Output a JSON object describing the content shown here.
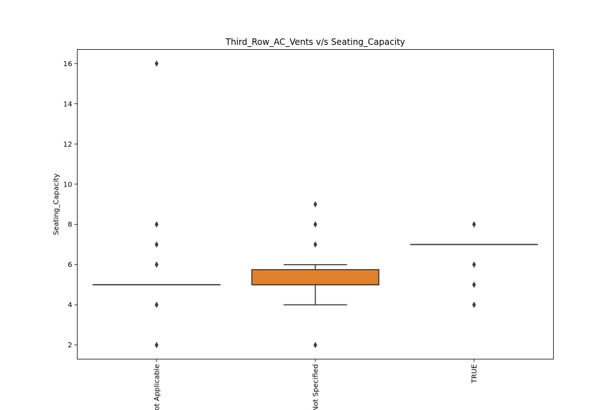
{
  "chart_data": {
    "type": "box",
    "title": "Third_Row_AC_Vents v/s Seating_Capacity",
    "xlabel": "",
    "ylabel": "Seating_Capacity",
    "categories": [
      "Not Applicable",
      "Not Specified",
      "TRUE"
    ],
    "yticks": [
      "2",
      "4",
      "6",
      "8",
      "10",
      "12",
      "14",
      "16"
    ],
    "ylim": [
      1.3,
      16.7
    ],
    "grid": false,
    "boxes": [
      {
        "category": "Not Applicable",
        "q1": 5,
        "median": 5,
        "q3": 5,
        "whisker_low": 5,
        "whisker_high": 5,
        "outliers": [
          16,
          8,
          7,
          6,
          4,
          2
        ],
        "color": "#3274a1"
      },
      {
        "category": "Not Specified",
        "q1": 5,
        "median": 5,
        "q3": 5.75,
        "whisker_low": 4,
        "whisker_high": 6,
        "outliers": [
          9,
          8,
          7,
          2
        ],
        "color": "#e1812c"
      },
      {
        "category": "TRUE",
        "q1": 7,
        "median": 7,
        "q3": 7,
        "whisker_low": 7,
        "whisker_high": 7,
        "outliers": [
          8,
          6,
          5,
          4
        ],
        "color": "#3a923a"
      }
    ]
  }
}
